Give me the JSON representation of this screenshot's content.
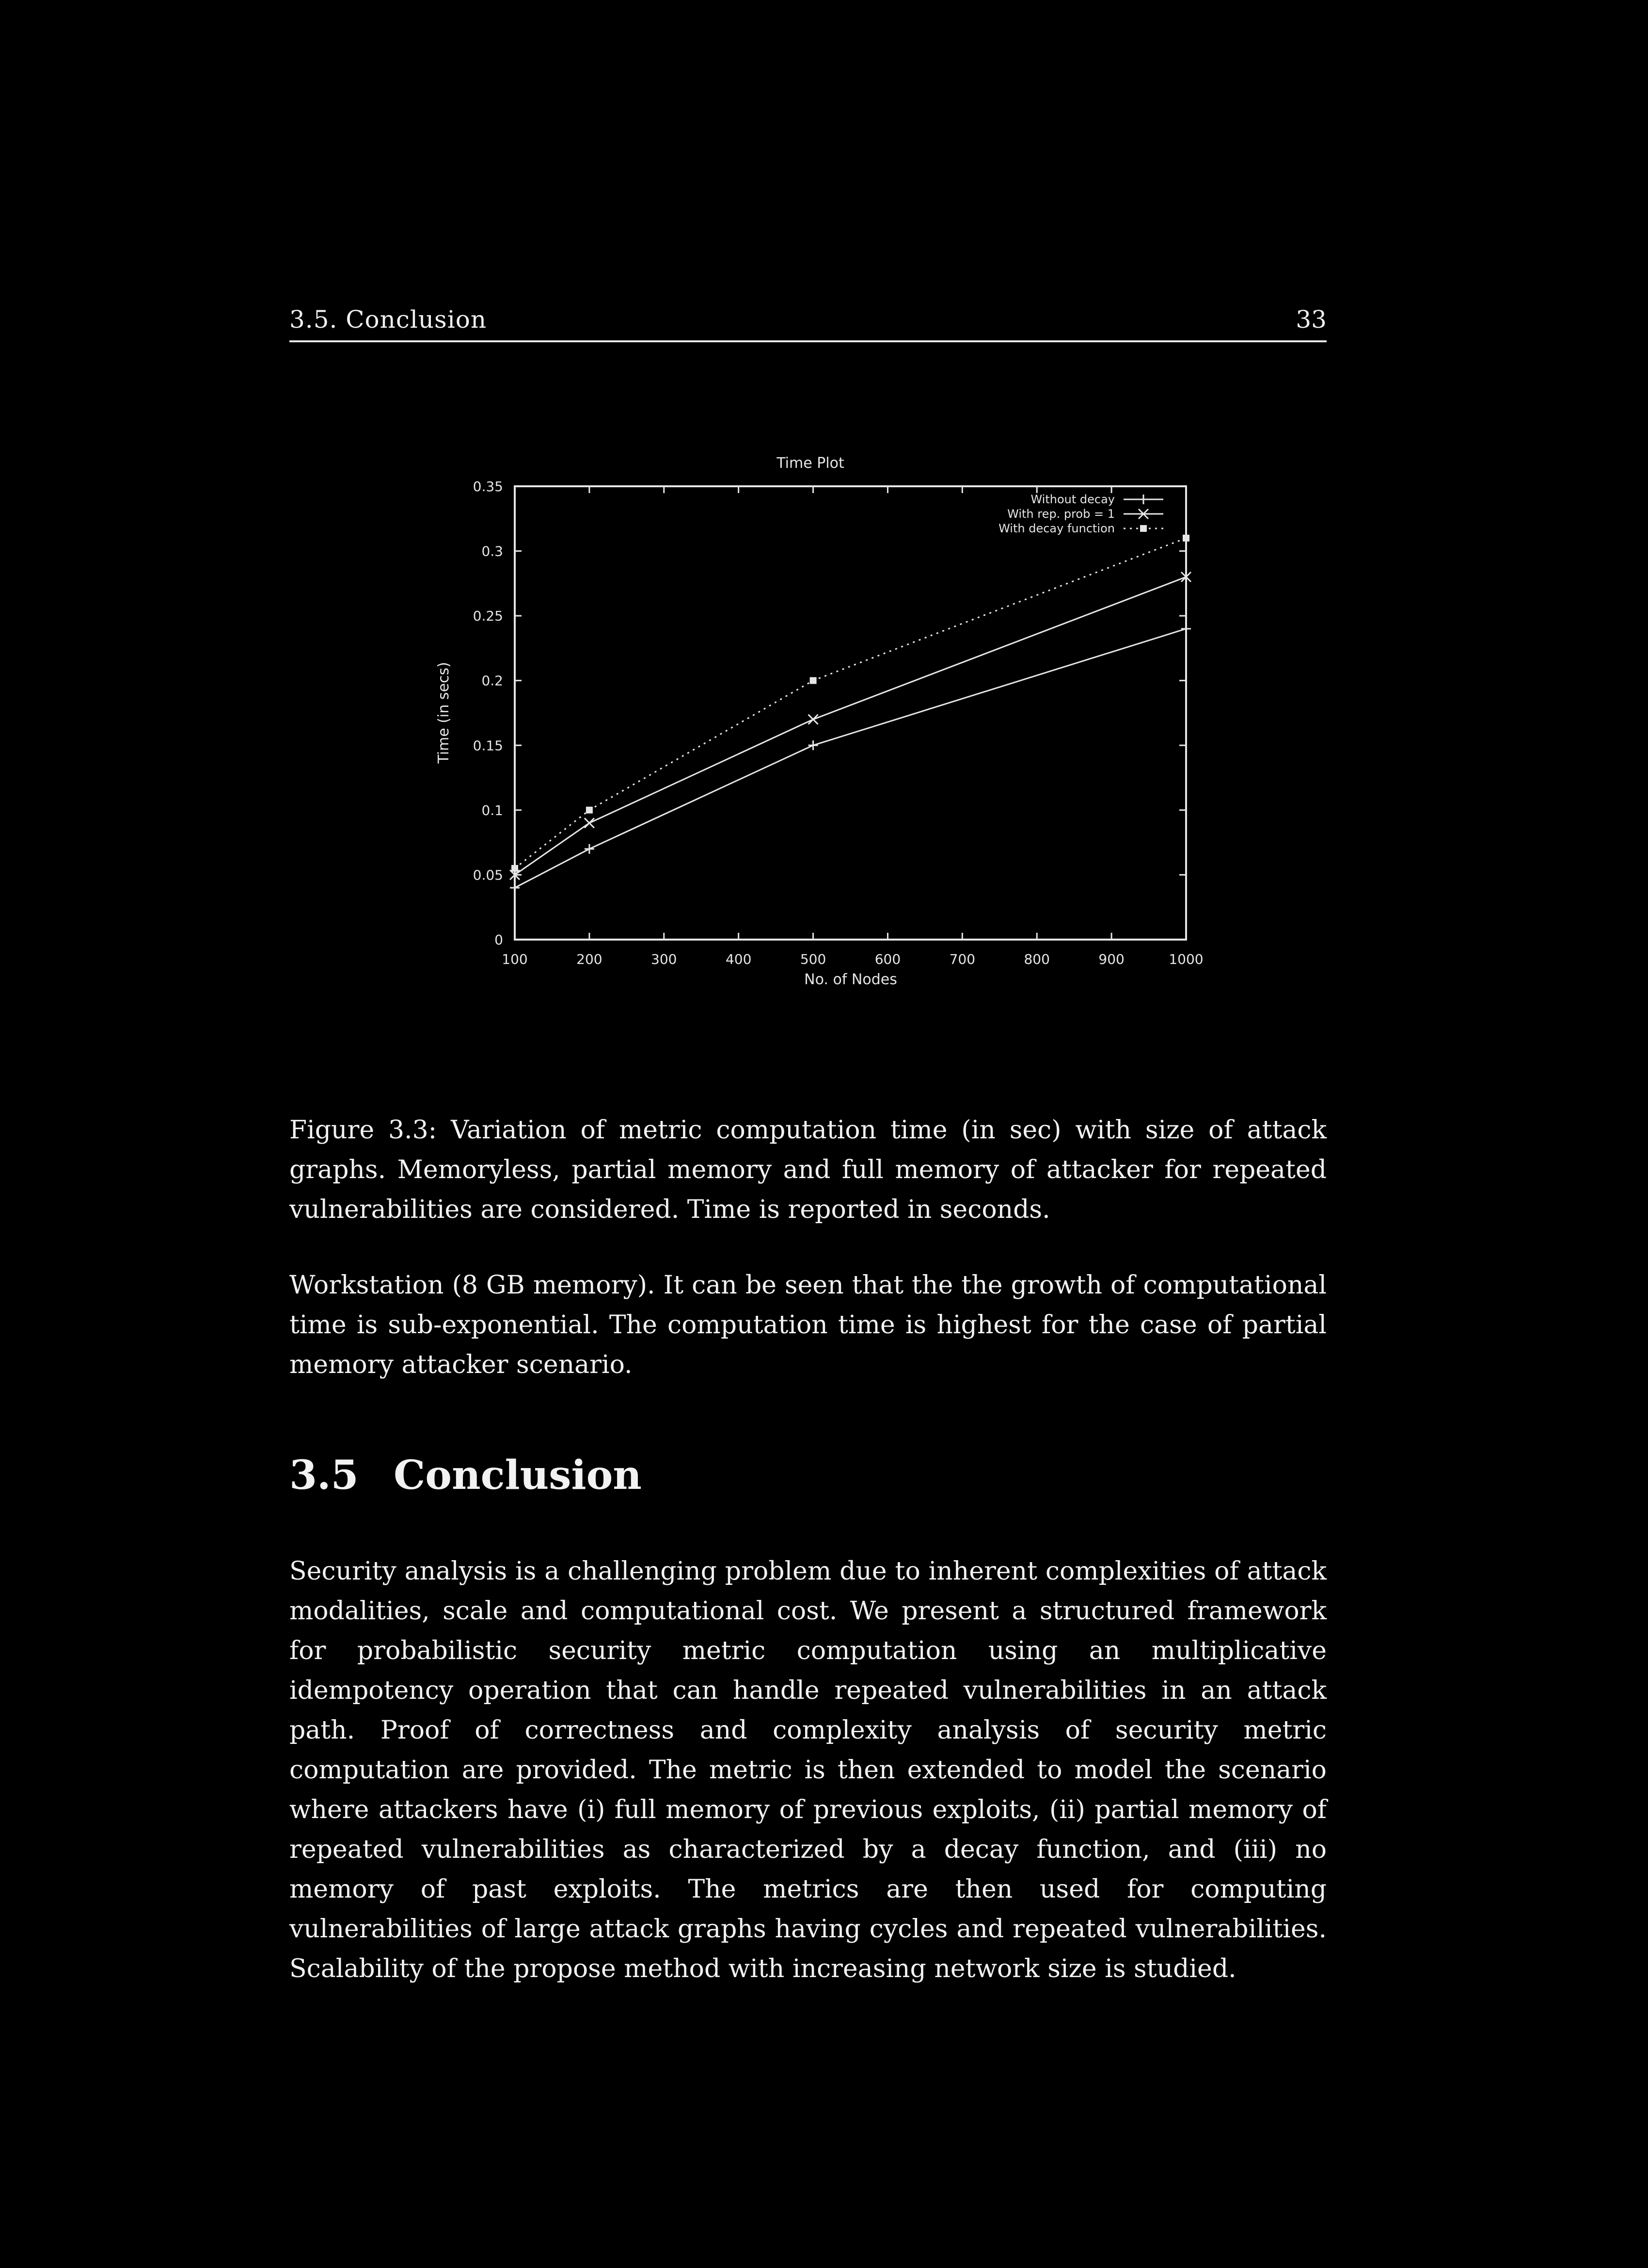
{
  "running_head": {
    "section": "3.5. Conclusion",
    "page_number": "33"
  },
  "chart_data": {
    "type": "line",
    "title": "Time Plot",
    "xlabel": "No. of Nodes",
    "ylabel": "Time (in secs)",
    "xlim": [
      100,
      1000
    ],
    "ylim": [
      0,
      0.35
    ],
    "x_ticks": [
      "100",
      "200",
      "300",
      "400",
      "500",
      "600",
      "700",
      "800",
      "900",
      "1000"
    ],
    "y_ticks": [
      "0",
      "0.05",
      "0.1",
      "0.15",
      "0.2",
      "0.25",
      "0.3",
      "0.35"
    ],
    "grid": false,
    "legend_position": "top-right",
    "x": [
      100,
      200,
      500,
      1000
    ],
    "series": [
      {
        "name": "Without decay",
        "marker": "+",
        "dash": "solid",
        "values": [
          0.04,
          0.07,
          0.15,
          0.24
        ]
      },
      {
        "name": "With rep. prob = 1",
        "marker": "x",
        "dash": "solid",
        "values": [
          0.05,
          0.09,
          0.17,
          0.28
        ]
      },
      {
        "name": "With decay function",
        "marker": "square",
        "dash": "dotted",
        "values": [
          0.055,
          0.1,
          0.2,
          0.31
        ]
      }
    ]
  },
  "figure_caption": "Figure 3.3: Variation of metric computation time (in sec) with size of attack graphs. Memoryless, partial memory and full memory of attacker for repeated vulnerabilities are considered. Time is reported in seconds.",
  "paragraph_1": "Workstation (8 GB memory). It can be seen that the the growth of computational time is sub-exponential. The computation time is highest for the case of partial memory attacker scenario.",
  "section": {
    "number": "3.5",
    "title": "Conclusion"
  },
  "paragraph_2": "Security analysis is a challenging problem due to inherent complexities of attack modalities, scale and computational cost. We present a structured framework for probabilistic security metric computation using an multiplicative idempotency operation that can handle repeated vulnerabilities in an attack path. Proof of correctness and complexity analysis of security metric computation are provided. The metric is then extended to model the scenario where attackers have (i) full memory of previous exploits, (ii) partial memory of repeated vulnerabilities as characterized by a decay function, and (iii) no memory of past exploits. The metrics are then used for computing vulnerabilities of large attack graphs having cycles and repeated vulnerabilities. Scalability of the propose method with increasing network size is studied."
}
